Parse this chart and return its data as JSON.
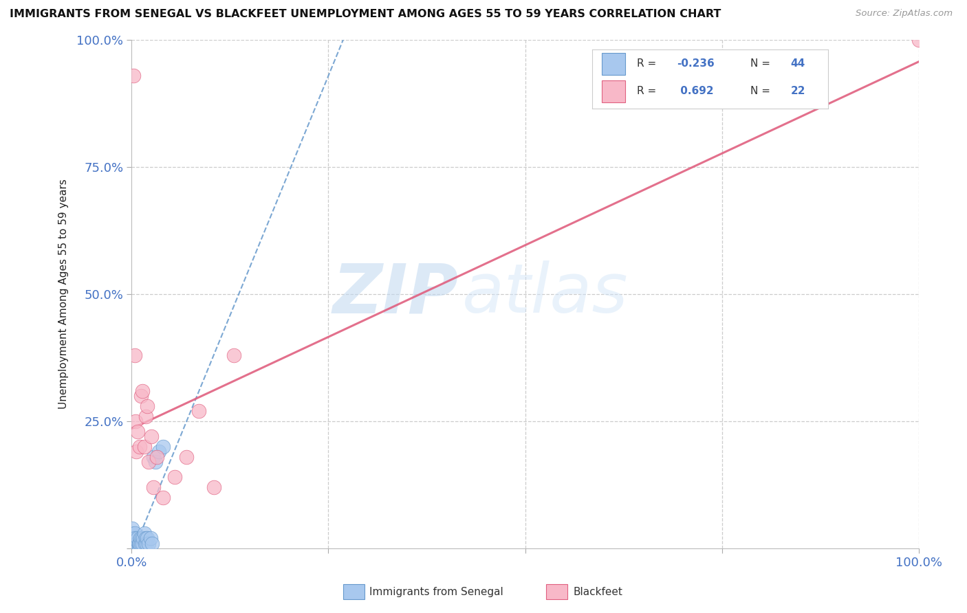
{
  "title": "IMMIGRANTS FROM SENEGAL VS BLACKFEET UNEMPLOYMENT AMONG AGES 55 TO 59 YEARS CORRELATION CHART",
  "source": "Source: ZipAtlas.com",
  "ylabel_label": "Unemployment Among Ages 55 to 59 years",
  "xlim": [
    0.0,
    1.0
  ],
  "ylim": [
    0.0,
    1.0
  ],
  "xtick_vals": [
    0.0,
    0.25,
    0.5,
    0.75,
    1.0
  ],
  "ytick_vals": [
    0.0,
    0.25,
    0.5,
    0.75,
    1.0
  ],
  "xtick_labels": [
    "0.0%",
    "",
    "",
    "",
    "100.0%"
  ],
  "ytick_labels": [
    "",
    "25.0%",
    "50.0%",
    "75.0%",
    "100.0%"
  ],
  "series": [
    {
      "label": "Immigrants from Senegal",
      "R": -0.236,
      "N": 44,
      "color": "#A8C8EE",
      "edge_color": "#6699CC",
      "line_color": "#6699CC",
      "line_style": "--",
      "x": [
        0.001,
        0.001,
        0.001,
        0.001,
        0.001,
        0.002,
        0.002,
        0.002,
        0.003,
        0.003,
        0.003,
        0.004,
        0.004,
        0.004,
        0.005,
        0.005,
        0.005,
        0.006,
        0.006,
        0.007,
        0.007,
        0.008,
        0.008,
        0.009,
        0.009,
        0.01,
        0.01,
        0.011,
        0.012,
        0.013,
        0.014,
        0.015,
        0.016,
        0.017,
        0.018,
        0.019,
        0.02,
        0.022,
        0.024,
        0.026,
        0.028,
        0.03,
        0.035,
        0.04
      ],
      "y": [
        0.0,
        0.01,
        0.02,
        0.03,
        0.04,
        0.0,
        0.01,
        0.02,
        0.0,
        0.01,
        0.02,
        0.0,
        0.01,
        0.03,
        0.0,
        0.01,
        0.02,
        0.0,
        0.01,
        0.0,
        0.01,
        0.0,
        0.02,
        0.0,
        0.01,
        0.0,
        0.01,
        0.02,
        0.01,
        0.02,
        0.01,
        0.02,
        0.03,
        0.01,
        0.02,
        0.01,
        0.02,
        0.01,
        0.02,
        0.01,
        0.18,
        0.17,
        0.19,
        0.2
      ]
    },
    {
      "label": "Blackfeet",
      "R": 0.692,
      "N": 22,
      "color": "#F8B8C8",
      "edge_color": "#E06080",
      "line_color": "#E06080",
      "line_style": "-",
      "x": [
        0.002,
        0.004,
        0.005,
        0.006,
        0.008,
        0.01,
        0.012,
        0.014,
        0.016,
        0.018,
        0.02,
        0.022,
        0.025,
        0.028,
        0.032,
        0.04,
        0.055,
        0.07,
        0.085,
        0.105,
        0.13,
        1.0
      ],
      "y": [
        0.93,
        0.38,
        0.25,
        0.19,
        0.23,
        0.2,
        0.3,
        0.31,
        0.2,
        0.26,
        0.28,
        0.17,
        0.22,
        0.12,
        0.18,
        0.1,
        0.14,
        0.18,
        0.27,
        0.12,
        0.38,
        1.0
      ]
    }
  ],
  "watermark_zip": "ZIP",
  "watermark_atlas": "atlas",
  "background_color": "#FFFFFF",
  "grid_color": "#CCCCCC",
  "title_color": "#111111",
  "tick_color": "#4472C4",
  "legend_R_color": "#4472C4",
  "legend_box_color": "#DDDDDD"
}
